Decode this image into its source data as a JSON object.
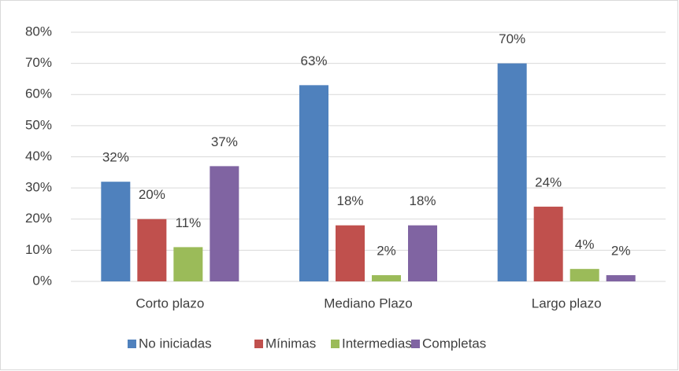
{
  "chart_data": {
    "type": "bar",
    "categories": [
      "Corto plazo",
      "Mediano Plazo",
      "Largo plazo"
    ],
    "series": [
      {
        "name": "No iniciadas",
        "color": "#4f81bd",
        "values": [
          32,
          63,
          70
        ],
        "value_labels": [
          "32%",
          "63%",
          "70%"
        ]
      },
      {
        "name": "Mínimas",
        "color": "#c0504d",
        "values": [
          20,
          18,
          24
        ],
        "value_labels": [
          "20%",
          "18%",
          "24%"
        ]
      },
      {
        "name": "Intermedias",
        "color": "#9bbb59",
        "values": [
          11,
          2,
          4
        ],
        "value_labels": [
          "11%",
          "2%",
          "4%"
        ]
      },
      {
        "name": "Completas",
        "color": "#8064a2",
        "values": [
          37,
          18,
          2
        ],
        "value_labels": [
          "37%",
          "18%",
          "2%"
        ]
      }
    ],
    "ylim": [
      0,
      80
    ],
    "yticks": [
      {
        "value": 0,
        "label": "0%"
      },
      {
        "value": 10,
        "label": "10%"
      },
      {
        "value": 20,
        "label": "20%"
      },
      {
        "value": 30,
        "label": "30%"
      },
      {
        "value": 40,
        "label": "40%"
      },
      {
        "value": 50,
        "label": "50%"
      },
      {
        "value": 60,
        "label": "60%"
      },
      {
        "value": 70,
        "label": "70%"
      },
      {
        "value": 80,
        "label": "80%"
      }
    ],
    "grid": true,
    "legend": "bottom"
  }
}
